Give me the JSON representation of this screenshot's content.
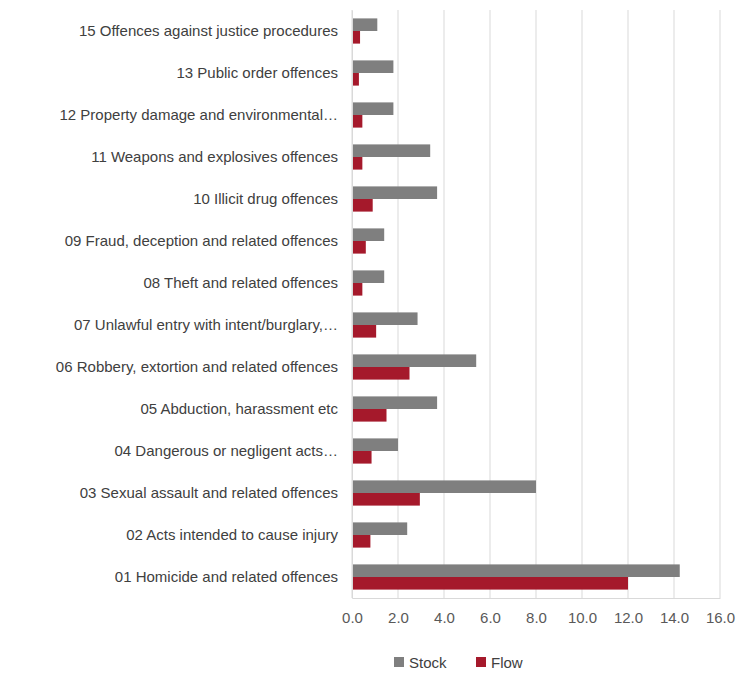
{
  "chart_data": {
    "type": "bar",
    "orientation": "horizontal",
    "categories": [
      "01 Homicide and related offences",
      "02 Acts intended to cause injury",
      "03 Sexual assault and related offences",
      "04 Dangerous or negligent acts…",
      "05 Abduction, harassment etc",
      "06 Robbery, extortion and related offences",
      "07 Unlawful entry with intent/burglary,…",
      "08 Theft and related offences",
      "09 Fraud, deception and related offences",
      "10 Illicit drug offences",
      "11 Weapons and explosives offences",
      "12 Property damage and environmental…",
      "13 Public order offences",
      "15 Offences against justice procedures"
    ],
    "series": [
      {
        "name": "Stock",
        "color": "#7f7f7f",
        "values": [
          14.25,
          2.4,
          8.0,
          2.0,
          3.7,
          5.4,
          2.85,
          1.4,
          1.4,
          3.7,
          3.4,
          1.8,
          1.8,
          1.1
        ]
      },
      {
        "name": "Flow",
        "color": "#a5192b",
        "values": [
          12.0,
          0.8,
          2.95,
          0.85,
          1.5,
          2.5,
          1.05,
          0.45,
          0.6,
          0.9,
          0.45,
          0.45,
          0.3,
          0.35
        ]
      }
    ],
    "xlim": [
      0,
      16
    ],
    "xticks": [
      {
        "value": 0,
        "label": "0.0"
      },
      {
        "value": 2,
        "label": "2.0"
      },
      {
        "value": 4,
        "label": "4.0"
      },
      {
        "value": 6,
        "label": "6.0"
      },
      {
        "value": 8,
        "label": "8.0"
      },
      {
        "value": 10,
        "label": "10.0"
      },
      {
        "value": 12,
        "label": "12.0"
      },
      {
        "value": 14,
        "label": "14.0"
      },
      {
        "value": 16,
        "label": "16.0"
      }
    ],
    "grid": true,
    "legend": "bottom"
  }
}
